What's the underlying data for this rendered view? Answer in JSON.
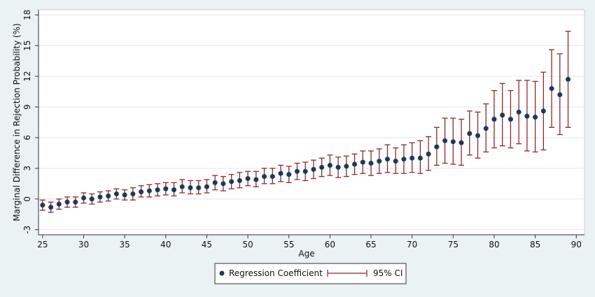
{
  "chart_data": {
    "type": "scatter",
    "title": "",
    "xlabel": "Age",
    "ylabel": "Marginal Difference in Rejection Probability (%)",
    "xlim": [
      24.5,
      91
    ],
    "ylim": [
      -3.5,
      18.5
    ],
    "x_ticks": [
      25,
      30,
      35,
      40,
      45,
      50,
      55,
      60,
      65,
      70,
      75,
      80,
      85,
      90
    ],
    "y_ticks": [
      -3,
      0,
      3,
      6,
      9,
      12,
      15,
      18
    ],
    "grid": "horizontal",
    "legend_position": "bottom",
    "colors": {
      "background": "#eaf2f3",
      "plot_background": "#ffffff",
      "point": "#1a3a5c",
      "ci": "#8b2a2a",
      "grid": "#e6e6e6"
    },
    "series": [
      {
        "name": "Regression Coefficient",
        "marker": "circle",
        "x": [
          25,
          26,
          27,
          28,
          29,
          30,
          31,
          32,
          33,
          34,
          35,
          36,
          37,
          38,
          39,
          40,
          41,
          42,
          43,
          44,
          45,
          46,
          47,
          48,
          49,
          50,
          51,
          52,
          53,
          54,
          55,
          56,
          57,
          58,
          59,
          60,
          61,
          62,
          63,
          64,
          65,
          66,
          67,
          68,
          69,
          70,
          71,
          72,
          73,
          74,
          75,
          76,
          77,
          78,
          79,
          80,
          81,
          82,
          83,
          84,
          85,
          86,
          87,
          88,
          89
        ],
        "y": [
          -0.6,
          -0.8,
          -0.5,
          -0.3,
          -0.3,
          0.1,
          0.0,
          0.2,
          0.3,
          0.5,
          0.4,
          0.5,
          0.7,
          0.8,
          0.9,
          1.0,
          0.9,
          1.2,
          1.1,
          1.1,
          1.2,
          1.6,
          1.5,
          1.7,
          1.8,
          2.0,
          1.9,
          2.2,
          2.2,
          2.5,
          2.4,
          2.7,
          2.7,
          2.9,
          3.1,
          3.3,
          3.1,
          3.2,
          3.4,
          3.6,
          3.5,
          3.7,
          3.9,
          3.7,
          3.9,
          4.0,
          4.0,
          4.4,
          5.1,
          5.7,
          5.6,
          5.5,
          6.4,
          6.2,
          6.9,
          7.8,
          8.2,
          7.8,
          8.5,
          8.1,
          8.0,
          8.6,
          10.8,
          10.2,
          11.7
        ]
      },
      {
        "name": "95% CI",
        "type": "errorbar",
        "lower": [
          -1.1,
          -1.3,
          -1.0,
          -0.8,
          -0.8,
          -0.4,
          -0.5,
          -0.3,
          -0.2,
          0.0,
          -0.1,
          -0.1,
          0.2,
          0.2,
          0.3,
          0.4,
          0.3,
          0.6,
          0.5,
          0.5,
          0.6,
          0.9,
          0.8,
          1.0,
          1.1,
          1.3,
          1.2,
          1.5,
          1.5,
          1.7,
          1.6,
          1.9,
          1.8,
          2.0,
          2.2,
          2.3,
          2.1,
          2.2,
          2.4,
          2.5,
          2.3,
          2.5,
          2.6,
          2.5,
          2.5,
          2.6,
          2.5,
          2.8,
          3.3,
          3.5,
          3.4,
          3.3,
          4.3,
          4.0,
          4.6,
          5.0,
          5.2,
          5.0,
          5.4,
          4.7,
          4.6,
          4.8,
          7.0,
          6.3,
          7.0
        ],
        "upper": [
          -0.1,
          -0.3,
          0.0,
          0.2,
          0.2,
          0.6,
          0.5,
          0.7,
          0.8,
          1.0,
          0.9,
          1.1,
          1.3,
          1.4,
          1.5,
          1.6,
          1.6,
          1.9,
          1.8,
          1.8,
          1.9,
          2.3,
          2.2,
          2.4,
          2.6,
          2.7,
          2.7,
          3.0,
          3.0,
          3.3,
          3.2,
          3.5,
          3.6,
          3.8,
          4.0,
          4.3,
          4.1,
          4.2,
          4.4,
          4.7,
          4.7,
          4.9,
          5.3,
          5.0,
          5.3,
          5.5,
          5.7,
          6.1,
          7.0,
          7.9,
          7.9,
          7.8,
          8.6,
          8.5,
          9.3,
          10.6,
          11.3,
          10.6,
          11.6,
          11.6,
          11.5,
          12.4,
          14.6,
          14.2,
          16.4
        ]
      }
    ]
  }
}
